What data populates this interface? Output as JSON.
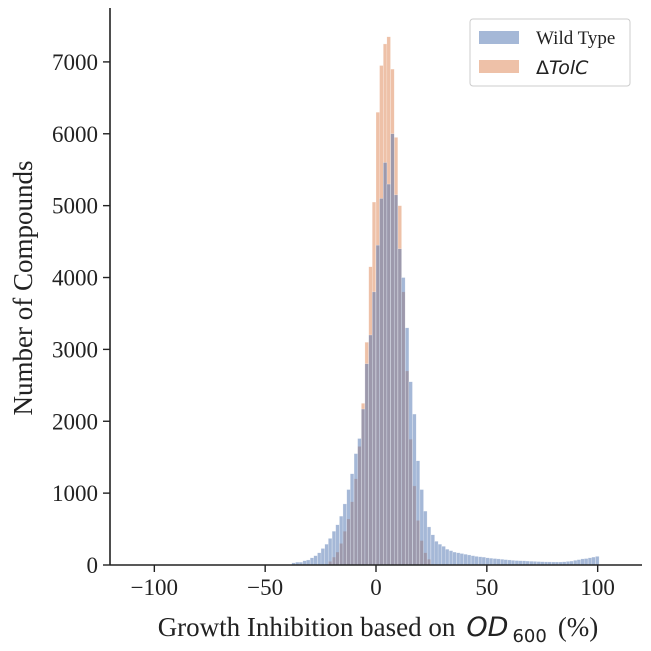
{
  "chart_data": {
    "type": "bar",
    "title": "",
    "xlabel": "Growth Inhibition based on",
    "xlabel_math": "OD",
    "xlabel_sub": "600",
    "xlabel_suffix": "(%)",
    "ylabel": "Number of Compounds",
    "xlim": [
      -120,
      120
    ],
    "ylim": [
      0,
      7750
    ],
    "xticks": [
      -100,
      -50,
      0,
      50,
      100
    ],
    "yticks": [
      0,
      1000,
      2000,
      3000,
      4000,
      5000,
      6000,
      7000
    ],
    "xtick_labels": [
      "−100",
      "−50",
      "0",
      "50",
      "100"
    ],
    "ytick_labels": [
      "0",
      "1000",
      "2000",
      "3000",
      "4000",
      "5000",
      "6000",
      "7000"
    ],
    "grid": false,
    "legend_position": "top-right",
    "bin_width": 1.65,
    "series": [
      {
        "name": "ΔTolC",
        "name_delta": "Δ",
        "name_rest": "TolC",
        "color": "#dd8452",
        "opacity": 0.5,
        "bins": [
          [
            -21.5,
            50
          ],
          [
            -19.8,
            110
          ],
          [
            -18.2,
            180
          ],
          [
            -16.5,
            300
          ],
          [
            -14.9,
            470
          ],
          [
            -13.2,
            640
          ],
          [
            -11.6,
            880
          ],
          [
            -9.9,
            1200
          ],
          [
            -8.3,
            1650
          ],
          [
            -6.6,
            2250
          ],
          [
            -5.0,
            3100
          ],
          [
            -3.3,
            4150
          ],
          [
            -1.7,
            5050
          ],
          [
            0.0,
            6300
          ],
          [
            1.6,
            6950
          ],
          [
            3.3,
            7250
          ],
          [
            4.9,
            7350
          ],
          [
            6.6,
            6900
          ],
          [
            8.2,
            5950
          ],
          [
            9.9,
            5000
          ],
          [
            11.5,
            3800
          ],
          [
            13.2,
            2700
          ],
          [
            14.8,
            1750
          ],
          [
            16.5,
            1100
          ],
          [
            18.1,
            620
          ],
          [
            19.8,
            340
          ],
          [
            21.4,
            170
          ],
          [
            23.1,
            80
          ]
        ]
      },
      {
        "name": "Wild Type",
        "color": "#4c72b0",
        "opacity": 0.5,
        "bins": [
          [
            -38,
            30
          ],
          [
            -36.3,
            40
          ],
          [
            -34.7,
            40
          ],
          [
            -33,
            60
          ],
          [
            -31.4,
            70
          ],
          [
            -29.7,
            100
          ],
          [
            -28.1,
            130
          ],
          [
            -26.4,
            170
          ],
          [
            -24.8,
            230
          ],
          [
            -23.1,
            290
          ],
          [
            -21.5,
            370
          ],
          [
            -19.8,
            470
          ],
          [
            -18.2,
            560
          ],
          [
            -16.5,
            680
          ],
          [
            -14.9,
            850
          ],
          [
            -13.2,
            1050
          ],
          [
            -11.6,
            1270
          ],
          [
            -9.9,
            1550
          ],
          [
            -8.3,
            1760
          ],
          [
            -6.6,
            2170
          ],
          [
            -5.0,
            2800
          ],
          [
            -3.3,
            3200
          ],
          [
            -1.7,
            3800
          ],
          [
            0.0,
            4450
          ],
          [
            1.6,
            5100
          ],
          [
            3.3,
            5600
          ],
          [
            4.9,
            5300
          ],
          [
            6.6,
            6000
          ],
          [
            8.2,
            5150
          ],
          [
            9.9,
            4400
          ],
          [
            11.5,
            4000
          ],
          [
            13.2,
            3300
          ],
          [
            14.8,
            2550
          ],
          [
            16.5,
            2100
          ],
          [
            18.1,
            1450
          ],
          [
            19.8,
            1050
          ],
          [
            21.4,
            750
          ],
          [
            23.1,
            530
          ],
          [
            24.8,
            420
          ],
          [
            26.4,
            330
          ],
          [
            28.0,
            290
          ],
          [
            29.7,
            260
          ],
          [
            31.3,
            220
          ],
          [
            33.0,
            200
          ],
          [
            34.6,
            180
          ],
          [
            36.3,
            170
          ],
          [
            37.9,
            160
          ],
          [
            39.6,
            150
          ],
          [
            41.2,
            140
          ],
          [
            42.9,
            130
          ],
          [
            44.5,
            120
          ],
          [
            46.2,
            115
          ],
          [
            47.8,
            110
          ],
          [
            49.5,
            100
          ],
          [
            51.1,
            95
          ],
          [
            52.8,
            90
          ],
          [
            54.4,
            85
          ],
          [
            56.1,
            80
          ],
          [
            57.7,
            75
          ],
          [
            59.4,
            70
          ],
          [
            61.0,
            65
          ],
          [
            62.7,
            62
          ],
          [
            64.3,
            60
          ],
          [
            66.0,
            58
          ],
          [
            67.6,
            55
          ],
          [
            69.3,
            52
          ],
          [
            70.9,
            50
          ],
          [
            72.6,
            48
          ],
          [
            74.2,
            46
          ],
          [
            75.9,
            44
          ],
          [
            77.5,
            43
          ],
          [
            79.2,
            42
          ],
          [
            80.8,
            42
          ],
          [
            82.5,
            42
          ],
          [
            84.1,
            45
          ],
          [
            85.8,
            50
          ],
          [
            87.4,
            55
          ],
          [
            89.1,
            65
          ],
          [
            90.7,
            75
          ],
          [
            92.4,
            85
          ],
          [
            94.0,
            90
          ],
          [
            95.7,
            100
          ],
          [
            97.3,
            110
          ],
          [
            99.0,
            120
          ]
        ]
      }
    ]
  }
}
